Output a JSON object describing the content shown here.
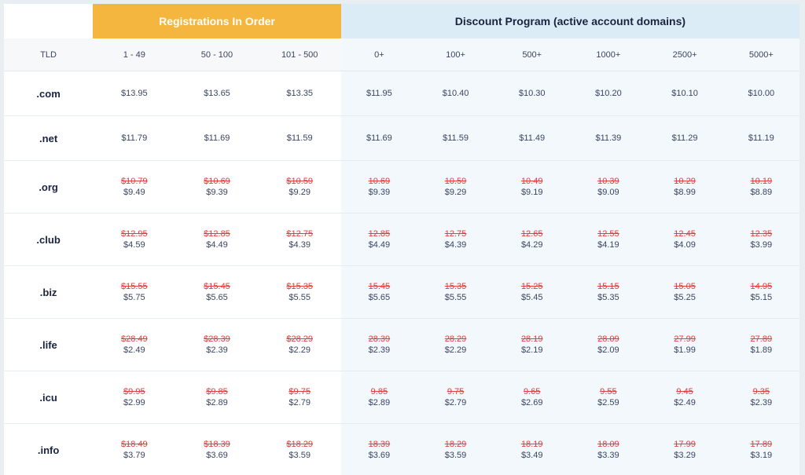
{
  "header": {
    "registrations_title": "Registrations In Order",
    "discount_title": "Discount Program (active account domains)"
  },
  "columns": {
    "tld": "TLD",
    "tiers": [
      "1 - 49",
      "50 - 100",
      "101 - 500",
      "0+",
      "100+",
      "500+",
      "1000+",
      "2500+",
      "5000+"
    ]
  },
  "rows": [
    {
      "tld": ".com",
      "prices": [
        {
          "new": "$13.95"
        },
        {
          "new": "$13.65"
        },
        {
          "new": "$13.35"
        },
        {
          "new": "$11.95"
        },
        {
          "new": "$10.40"
        },
        {
          "new": "$10.30"
        },
        {
          "new": "$10.20"
        },
        {
          "new": "$10.10"
        },
        {
          "new": "$10.00"
        }
      ]
    },
    {
      "tld": ".net",
      "prices": [
        {
          "new": "$11.79"
        },
        {
          "new": "$11.69"
        },
        {
          "new": "$11.59"
        },
        {
          "new": "$11.69"
        },
        {
          "new": "$11.59"
        },
        {
          "new": "$11.49"
        },
        {
          "new": "$11.39"
        },
        {
          "new": "$11.29"
        },
        {
          "new": "$11.19"
        }
      ]
    },
    {
      "tld": ".org",
      "prices": [
        {
          "old": "$10.79",
          "new": "$9.49"
        },
        {
          "old": "$10.69",
          "new": "$9.39"
        },
        {
          "old": "$10.59",
          "new": "$9.29"
        },
        {
          "old": "10.69",
          "new": "$9.39"
        },
        {
          "old": "10.59",
          "new": "$9.29"
        },
        {
          "old": "10.49",
          "new": "$9.19"
        },
        {
          "old": "10.39",
          "new": "$9.09"
        },
        {
          "old": "10.29",
          "new": "$8.99"
        },
        {
          "old": "10.19",
          "new": "$8.89"
        }
      ]
    },
    {
      "tld": ".club",
      "prices": [
        {
          "old": "$12.95",
          "new": "$4.59"
        },
        {
          "old": "$12.85",
          "new": "$4.49"
        },
        {
          "old": "$12.75",
          "new": "$4.39"
        },
        {
          "old": "12.85",
          "new": "$4.49"
        },
        {
          "old": "12.75",
          "new": "$4.39"
        },
        {
          "old": "12.65",
          "new": "$4.29"
        },
        {
          "old": "12.55",
          "new": "$4.19"
        },
        {
          "old": "12.45",
          "new": "$4.09"
        },
        {
          "old": "12.35",
          "new": "$3.99"
        }
      ]
    },
    {
      "tld": ".biz",
      "prices": [
        {
          "old": "$15.55",
          "new": "$5.75"
        },
        {
          "old": "$15.45",
          "new": "$5.65"
        },
        {
          "old": "$15.35",
          "new": "$5.55"
        },
        {
          "old": "15.45",
          "new": "$5.65"
        },
        {
          "old": "15.35",
          "new": "$5.55"
        },
        {
          "old": "15.25",
          "new": "$5.45"
        },
        {
          "old": "15.15",
          "new": "$5.35"
        },
        {
          "old": "15.05",
          "new": "$5.25"
        },
        {
          "old": "14.95",
          "new": "$5.15"
        }
      ]
    },
    {
      "tld": ".life",
      "prices": [
        {
          "old": "$28.49",
          "new": "$2.49"
        },
        {
          "old": "$28.39",
          "new": "$2.39"
        },
        {
          "old": "$28.29",
          "new": "$2.29"
        },
        {
          "old": "28.39",
          "new": "$2.39"
        },
        {
          "old": "28.29",
          "new": "$2.29"
        },
        {
          "old": "28.19",
          "new": "$2.19"
        },
        {
          "old": "28.09",
          "new": "$2.09"
        },
        {
          "old": "27.99",
          "new": "$1.99"
        },
        {
          "old": "27.89",
          "new": "$1.89"
        }
      ]
    },
    {
      "tld": ".icu",
      "prices": [
        {
          "old": "$9.95",
          "new": "$2.99"
        },
        {
          "old": "$9.85",
          "new": "$2.89"
        },
        {
          "old": "$9.75",
          "new": "$2.79"
        },
        {
          "old": "9.85",
          "new": "$2.89"
        },
        {
          "old": "9.75",
          "new": "$2.79"
        },
        {
          "old": "9.65",
          "new": "$2.69"
        },
        {
          "old": "9.55",
          "new": "$2.59"
        },
        {
          "old": "9.45",
          "new": "$2.49"
        },
        {
          "old": "9.35",
          "new": "$2.39"
        }
      ]
    },
    {
      "tld": ".info",
      "prices": [
        {
          "old": "$18.49",
          "new": "$3.79"
        },
        {
          "old": "$18.39",
          "new": "$3.69"
        },
        {
          "old": "$18.29",
          "new": "$3.59"
        },
        {
          "old": "18.39",
          "new": "$3.69"
        },
        {
          "old": "18.29",
          "new": "$3.59"
        },
        {
          "old": "18.19",
          "new": "$3.49"
        },
        {
          "old": "18.09",
          "new": "$3.39"
        },
        {
          "old": "17.99",
          "new": "$3.29"
        },
        {
          "old": "17.89",
          "new": "$3.19"
        }
      ]
    }
  ],
  "colors": {
    "registrations_header": "#f4b63f",
    "discount_header": "#dcecf7",
    "strike_price": "#e23c3c"
  }
}
